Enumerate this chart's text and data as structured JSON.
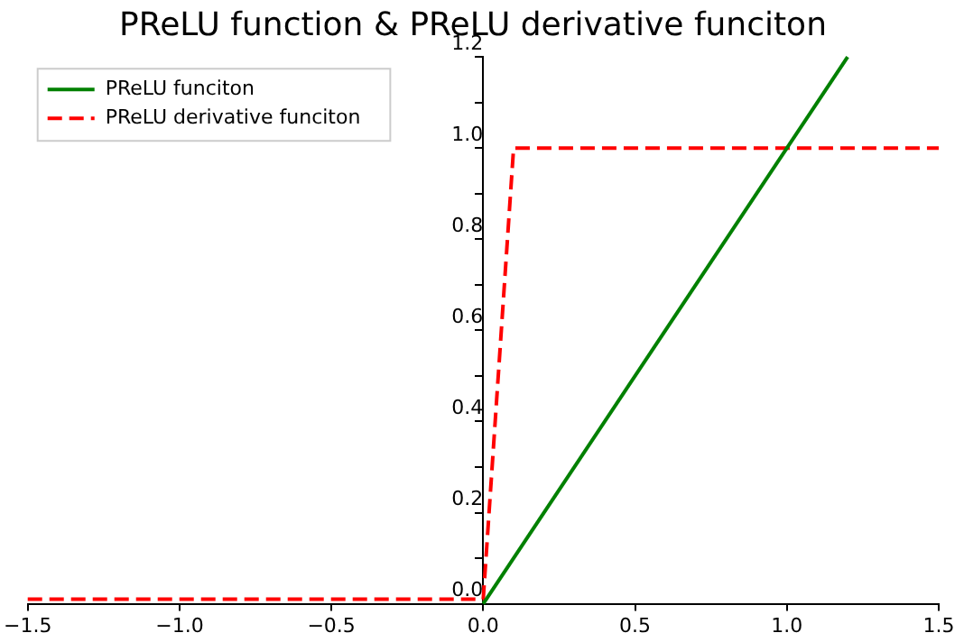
{
  "chart_data": {
    "type": "line",
    "title": "PReLU function & PReLU derivative funciton",
    "xlim": [
      -1.5,
      1.5
    ],
    "xticks": [
      {
        "value": -1.5,
        "label": "−1.5"
      },
      {
        "value": -1.0,
        "label": "−1.0"
      },
      {
        "value": -0.5,
        "label": "−0.5"
      },
      {
        "value": 0,
        "label": "0.0"
      },
      {
        "value": 0.5,
        "label": "0.5"
      },
      {
        "value": 1.0,
        "label": "1.0"
      },
      {
        "value": 1.5,
        "label": "1.5"
      }
    ],
    "ylim": [
      0,
      1.2
    ],
    "yticks": [
      {
        "value": 0,
        "label": "0.0"
      },
      {
        "value": 0.1,
        "label": null
      },
      {
        "value": 0.2,
        "label": "0.2"
      },
      {
        "value": 0.3,
        "label": null
      },
      {
        "value": 0.4,
        "label": "0.4"
      },
      {
        "value": 0.5,
        "label": null
      },
      {
        "value": 0.6,
        "label": "0.6"
      },
      {
        "value": 0.7,
        "label": null
      },
      {
        "value": 0.8,
        "label": "0.8"
      },
      {
        "value": 0.9,
        "label": null
      },
      {
        "value": 1.0,
        "label": "1.0"
      },
      {
        "value": 1.1,
        "label": null
      },
      {
        "value": 1.2,
        "label": "1.2"
      }
    ],
    "grid": false,
    "legend": "top left",
    "series": [
      {
        "name": "PReLU funciton",
        "color": "#008000",
        "line_style": "solid",
        "x": [
          0,
          1.2
        ],
        "values": [
          0,
          1.2
        ]
      },
      {
        "name": "PReLU derivative funciton",
        "color": "#ff0000",
        "line_style": "dashed",
        "x": [
          -1.5,
          0,
          0.1,
          1.5
        ],
        "values": [
          0.01,
          0.01,
          1,
          1
        ]
      }
    ]
  }
}
